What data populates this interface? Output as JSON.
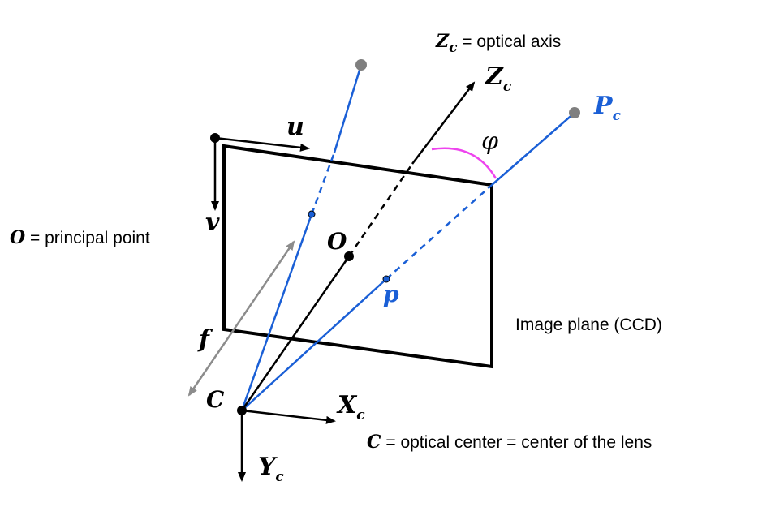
{
  "colors": {
    "ink": "#000000",
    "ray": "#1a5fd6",
    "point_gray": "#7f7f7f",
    "angle_arc": "#ee44ee",
    "focal_arrow": "#8c8c8c"
  },
  "labels": {
    "zc_caption_symbol": "Z",
    "zc_caption_sub": "c",
    "zc_caption_text": " = optical axis",
    "zc_axis_symbol": "Z",
    "zc_axis_sub": "c",
    "pc_symbol": "P",
    "pc_sub": "c",
    "phi": "φ",
    "u": "u",
    "v": "v",
    "o_caption_symbol": "O",
    "o_caption_text": " = principal point",
    "o_point": "O",
    "p_point": "p",
    "image_plane": "Image plane (CCD)",
    "f": "f",
    "c_point": "C",
    "xc_symbol": "X",
    "xc_sub": "c",
    "yc_symbol": "Y",
    "yc_sub": "c",
    "c_caption_symbol": "C",
    "c_caption_text": " = optical center = center of the lens"
  }
}
